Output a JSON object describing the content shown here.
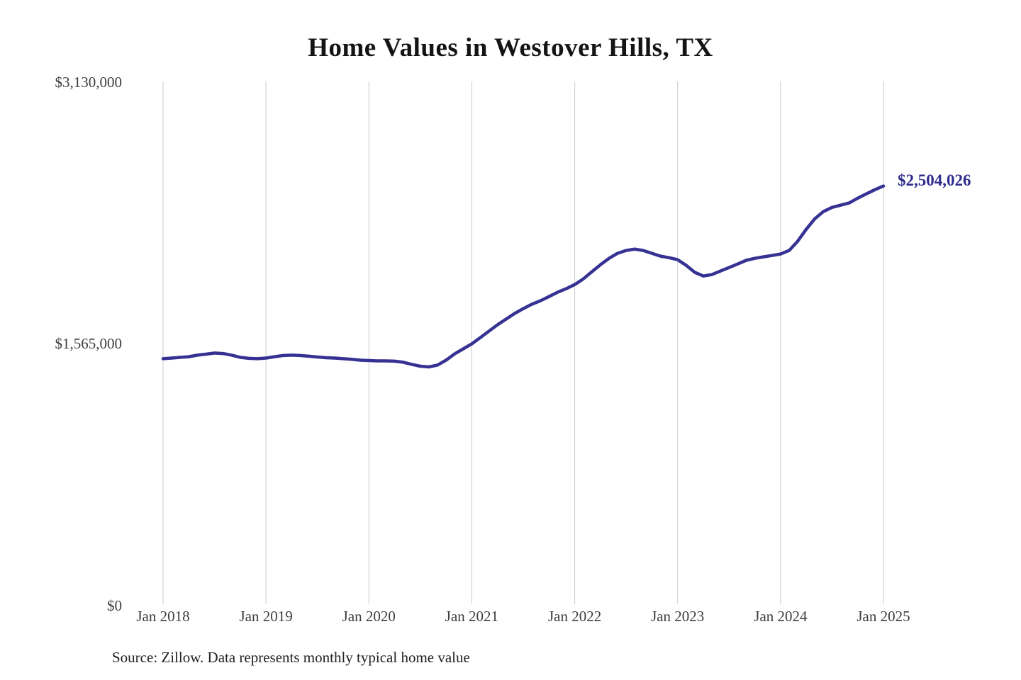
{
  "chart": {
    "title": "Home Values in Westover Hills, TX",
    "source": "Source: Zillow. Data represents monthly typical home value",
    "end_label": "$2,504,026",
    "line_color": "#363293",
    "end_label_color": "#2e2b8d",
    "gridline_color": "#cbcbcb",
    "axis_text_color": "#3d3d3d"
  },
  "chart_data": {
    "type": "line",
    "title": "Home Values in Westover Hills, TX",
    "xlabel": "",
    "ylabel": "",
    "ylim": [
      0,
      3130000
    ],
    "y_tick_labels": [
      "$3,130,000",
      "$1,565,000",
      "$0"
    ],
    "x_tick_labels": [
      "Jan 2018",
      "Jan 2019",
      "Jan 2020",
      "Jan 2021",
      "Jan 2022",
      "Jan 2023",
      "Jan 2024",
      "Jan 2025"
    ],
    "x_start_month": "2018-01",
    "x_end_month": "2025-01",
    "frequency": "monthly",
    "grid": "vertical-only",
    "legend": "none",
    "series_name": "Typical home value ($)",
    "values": [
      1470000,
      1474000,
      1478000,
      1482000,
      1491000,
      1497000,
      1504000,
      1501000,
      1491000,
      1478000,
      1472000,
      1470000,
      1474000,
      1482000,
      1489000,
      1491000,
      1489000,
      1485000,
      1480000,
      1476000,
      1474000,
      1470000,
      1466000,
      1461000,
      1459000,
      1457000,
      1457000,
      1455000,
      1449000,
      1436000,
      1425000,
      1421000,
      1432000,
      1461000,
      1499000,
      1529000,
      1559000,
      1597000,
      1635000,
      1673000,
      1707000,
      1741000,
      1770000,
      1796000,
      1817000,
      1842000,
      1868000,
      1889000,
      1914000,
      1948000,
      1991000,
      2033000,
      2071000,
      2101000,
      2118000,
      2126000,
      2118000,
      2101000,
      2084000,
      2075000,
      2063000,
      2029000,
      1987000,
      1965000,
      1974000,
      1995000,
      2016000,
      2037000,
      2059000,
      2071000,
      2080000,
      2088000,
      2097000,
      2118000,
      2173000,
      2245000,
      2308000,
      2351000,
      2376000,
      2389000,
      2402000,
      2431000,
      2457000,
      2482000,
      2504026
    ],
    "latest_value": 2504026,
    "annotation": "$2,504,026"
  }
}
